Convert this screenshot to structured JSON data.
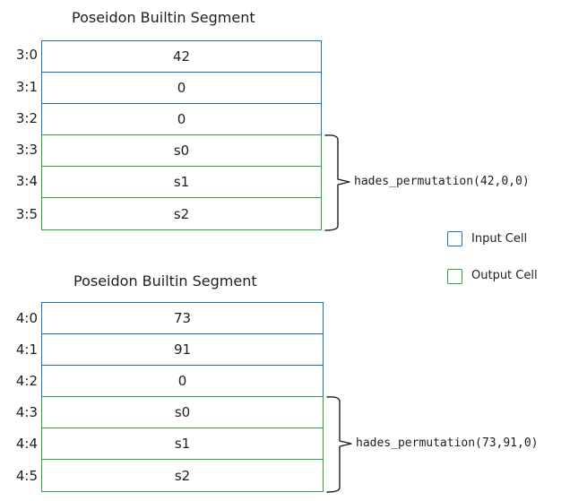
{
  "segments": [
    {
      "title": "Poseidon Builtin Segment",
      "call": "hades_permutation(42,0,0)",
      "rows": [
        {
          "addr": "3:0",
          "value": "42",
          "kind": "input"
        },
        {
          "addr": "3:1",
          "value": "0",
          "kind": "input"
        },
        {
          "addr": "3:2",
          "value": "0",
          "kind": "input"
        },
        {
          "addr": "3:3",
          "value": "s0",
          "kind": "output"
        },
        {
          "addr": "3:4",
          "value": "s1",
          "kind": "output"
        },
        {
          "addr": "3:5",
          "value": "s2",
          "kind": "output"
        }
      ]
    },
    {
      "title": "Poseidon Builtin Segment",
      "call": "hades_permutation(73,91,0)",
      "rows": [
        {
          "addr": "4:0",
          "value": "73",
          "kind": "input"
        },
        {
          "addr": "4:1",
          "value": "91",
          "kind": "input"
        },
        {
          "addr": "4:2",
          "value": "0",
          "kind": "input"
        },
        {
          "addr": "4:3",
          "value": "s0",
          "kind": "output"
        },
        {
          "addr": "4:4",
          "value": "s1",
          "kind": "output"
        },
        {
          "addr": "4:5",
          "value": "s2",
          "kind": "output"
        }
      ]
    }
  ],
  "legend": {
    "input_label": "Input Cell",
    "output_label": "Output Cell"
  },
  "colors": {
    "input": "#1971c2",
    "output": "#2f9e44"
  }
}
